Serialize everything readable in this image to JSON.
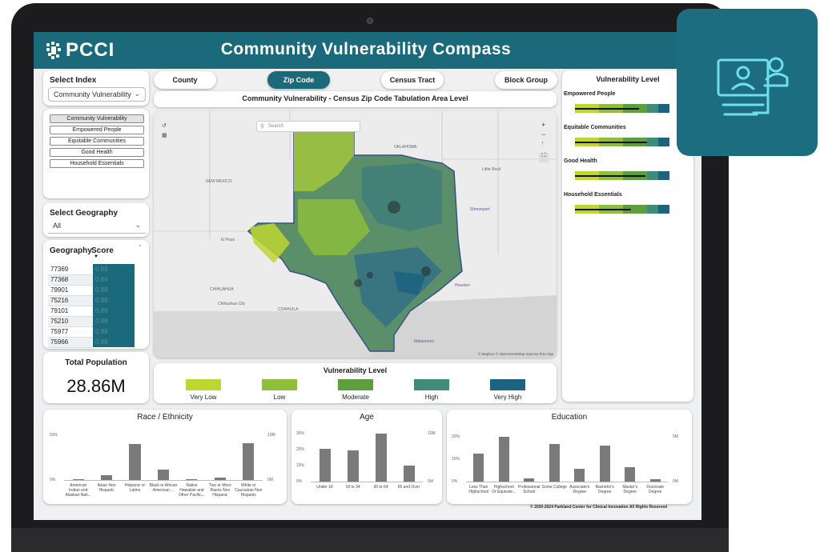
{
  "app": {
    "logo_text": "PCCI",
    "title": "Community Vulnerability Compass"
  },
  "select_index": {
    "label": "Select Index",
    "selected": "Community Vulnerability",
    "options": [
      "Community Vulnerability",
      "Empowered People",
      "Equitable Communities",
      "Good Health",
      "Household Essentials"
    ]
  },
  "select_geography": {
    "label": "Select Geography",
    "selected": "All"
  },
  "geo_table": {
    "headers": [
      "Geography",
      "Score"
    ],
    "rows": [
      {
        "geo": "77369",
        "score": "0.89"
      },
      {
        "geo": "77368",
        "score": "0.89"
      },
      {
        "geo": "79901",
        "score": "0.88"
      },
      {
        "geo": "75216",
        "score": "0.88"
      },
      {
        "geo": "79101",
        "score": "0.88"
      },
      {
        "geo": "75210",
        "score": "0.88"
      },
      {
        "geo": "75977",
        "score": "0.88"
      },
      {
        "geo": "75966",
        "score": "0.88"
      }
    ]
  },
  "population": {
    "label": "Total Population",
    "value": "28.86M"
  },
  "tabs": [
    "County",
    "Zip Code",
    "Census Tract",
    "Block Group"
  ],
  "active_tab": "Zip Code",
  "map": {
    "subtitle": "Community Vulnerability - Census Zip Code Tabulation Area Level",
    "search_placeholder": "Search",
    "attribution": "© Mapbox © OpenStreetMap Improve this map",
    "places": [
      "OKLAHOMA",
      "NEW MEXICO",
      "CHIHUAHUA",
      "COAHUILA",
      "El Paso",
      "Chihuahua City",
      "Houston",
      "Matamoros",
      "Shreveport",
      "Little Rock"
    ]
  },
  "vulnerability_legend": {
    "title": "Vulnerability Level",
    "items": [
      {
        "label": "Very Low",
        "color": "#bfd630"
      },
      {
        "label": "Low",
        "color": "#8fbf3a"
      },
      {
        "label": "Moderate",
        "color": "#5e9e3c"
      },
      {
        "label": "High",
        "color": "#3f8c78"
      },
      {
        "label": "Very High",
        "color": "#1d6380"
      }
    ]
  },
  "vulnerability_panel": {
    "title": "Vulnerability Level",
    "rows": [
      "Empowered People",
      "Equitable Communities",
      "Good Health",
      "Household Essentials"
    ]
  },
  "charts": {
    "race": {
      "title": "Race / Ethnicity",
      "left_ticks": [
        "50%",
        "0%"
      ],
      "right_ticks": [
        "10M",
        "0M"
      ],
      "categories": [
        "American Indian and Alaskan Nati...",
        "Asian Non Hispanic",
        "Hispanic or Latino",
        "Black or African American ...",
        "Native Hawaiian and Other Pacific...",
        "Two or More Races Non Hispanic",
        "White or Caucasian Non Hispanic"
      ],
      "values": [
        0.3,
        5.5,
        40,
        12,
        0.3,
        2.5,
        41
      ]
    },
    "age": {
      "title": "Age",
      "left_ticks": [
        "30%",
        "20%",
        "10%",
        "0%"
      ],
      "right_ticks": [
        "10M",
        "5M"
      ],
      "categories": [
        "Under 18",
        "18 to 34",
        "35 to 64",
        "65 and Over"
      ],
      "values": [
        25.5,
        24,
        37,
        12.5
      ]
    },
    "education": {
      "title": "Education",
      "left_ticks": [
        "20%",
        "10%",
        "0%"
      ],
      "right_ticks": [
        "5M",
        "0M"
      ],
      "categories": [
        "Less Than Highschool",
        "Highschool Or Equivale...",
        "Professional School",
        "Some College",
        "Associate's Degree",
        "Bachelor's Degree",
        "Master's Degree",
        "Doctorate Degree"
      ],
      "values": [
        15.5,
        25,
        2,
        21,
        7,
        20,
        8,
        1.5
      ]
    }
  },
  "footer": "© 2020-2024 Parkland Center for Clinical Innovation All Rights Reserved",
  "colors": {
    "brand": "#1a6a7c",
    "bar": "#7a7a7a"
  }
}
